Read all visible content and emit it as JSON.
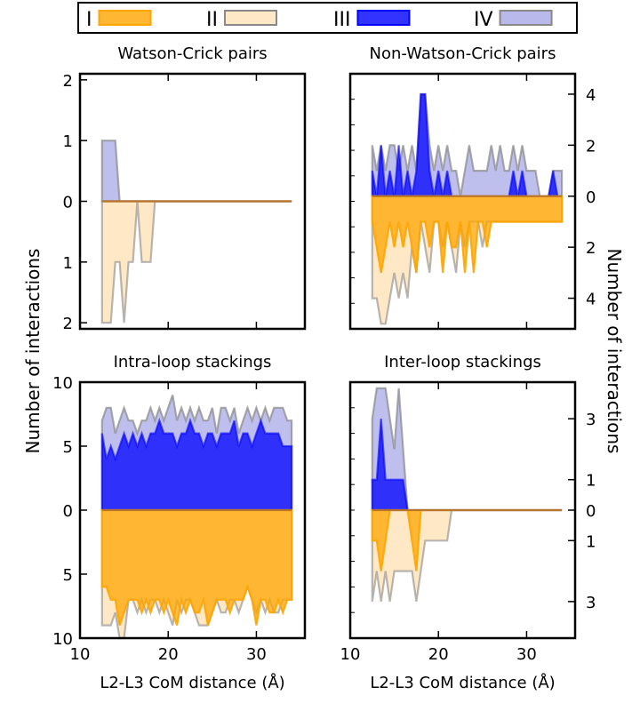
{
  "figure": {
    "ylabel_left": "Number of interactions",
    "ylabel_right": "Number of interactions",
    "colors": {
      "I": "#ffa500",
      "II": "#ffd9a0",
      "III": "#0000ff",
      "IV": "#8a8ae0"
    }
  },
  "legend": {
    "position": "top",
    "entries": [
      {
        "label": "I",
        "color": "#ffa500"
      },
      {
        "label": "II",
        "color": "#ffd9a0"
      },
      {
        "label": "III",
        "color": "#0000ff"
      },
      {
        "label": "IV",
        "color": "#8a8ae0"
      }
    ]
  },
  "chart_data": [
    {
      "id": "wc",
      "type": "area",
      "title": "Watson-Crick pairs",
      "xlabel": "",
      "xlim": [
        10,
        35.5
      ],
      "ylim": [
        -2.1,
        2.1
      ],
      "xticks": [
        10,
        20,
        30
      ],
      "xtick_labels": [
        "",
        "",
        ""
      ],
      "yticks": [
        2,
        1,
        0,
        -1,
        -2
      ],
      "ytick_labels": [
        "2",
        "1",
        "0",
        "1",
        "2"
      ],
      "ytick_side": "left",
      "x": [
        12.5,
        13,
        13.5,
        14,
        14.5,
        15,
        15.5,
        16,
        16.5,
        17,
        17.5,
        18,
        18.5,
        19,
        19.5,
        20,
        20.5,
        21,
        21.5,
        22,
        22.5,
        23,
        23.5,
        24,
        24.5,
        25,
        25.5,
        26,
        26.5,
        27,
        27.5,
        28,
        28.5,
        29,
        29.5,
        30,
        30.5,
        31,
        31.5,
        32,
        32.5,
        33,
        33.5,
        34
      ],
      "series": [
        {
          "name": "IV",
          "sign": 1,
          "values": [
            1,
            1,
            1,
            1,
            0,
            0,
            0,
            0,
            0,
            0,
            0,
            0,
            0,
            0,
            0,
            0,
            0,
            0,
            0,
            0,
            0,
            0,
            0,
            0,
            0,
            0,
            0,
            0,
            0,
            0,
            0,
            0,
            0,
            0,
            0,
            0,
            0,
            0,
            0,
            0,
            0,
            0,
            0,
            0
          ]
        },
        {
          "name": "III",
          "sign": 1,
          "values": [
            0,
            0,
            0,
            0,
            0,
            0,
            0,
            0,
            0,
            0,
            0,
            0,
            0,
            0,
            0,
            0,
            0,
            0,
            0,
            0,
            0,
            0,
            0,
            0,
            0,
            0,
            0,
            0,
            0,
            0,
            0,
            0,
            0,
            0,
            0,
            0,
            0,
            0,
            0,
            0,
            0,
            0,
            0,
            0
          ]
        },
        {
          "name": "II",
          "sign": -1,
          "values": [
            2,
            2,
            2,
            1,
            1,
            2,
            1,
            1,
            0,
            1,
            1,
            1,
            0,
            0,
            0,
            0,
            0,
            0,
            0,
            0,
            0,
            0,
            0,
            0,
            0,
            0,
            0,
            0,
            0,
            0,
            0,
            0,
            0,
            0,
            0,
            0,
            0,
            0,
            0,
            0,
            0,
            0,
            0,
            0
          ]
        },
        {
          "name": "I",
          "sign": -1,
          "values": [
            0,
            0,
            0,
            0,
            0,
            0,
            0,
            0,
            0,
            0,
            0,
            0,
            0,
            0,
            0,
            0,
            0,
            0,
            0,
            0,
            0,
            0,
            0,
            0,
            0,
            0,
            0,
            0,
            0,
            0,
            0,
            0,
            0,
            0,
            0,
            0,
            0,
            0,
            0,
            0,
            0,
            0,
            0,
            0
          ]
        }
      ]
    },
    {
      "id": "nwc",
      "type": "area",
      "title": "Non-Watson-Crick pairs",
      "xlabel": "",
      "xlim": [
        10,
        35.5
      ],
      "ylim": [
        -5.2,
        4.8
      ],
      "xticks": [
        10,
        20,
        30
      ],
      "xtick_labels": [
        "",
        "",
        ""
      ],
      "yticks": [
        4,
        2,
        0,
        -2,
        -4
      ],
      "ytick_labels": [
        "4",
        "2",
        "0",
        "2",
        "4"
      ],
      "ytick_side": "right",
      "x": [
        12.5,
        13,
        13.5,
        14,
        14.5,
        15,
        15.5,
        16,
        16.5,
        17,
        17.5,
        18,
        18.5,
        19,
        19.5,
        20,
        20.5,
        21,
        21.5,
        22,
        22.5,
        23,
        23.5,
        24,
        24.5,
        25,
        25.5,
        26,
        26.5,
        27,
        27.5,
        28,
        28.5,
        29,
        29.5,
        30,
        30.5,
        31,
        31.5,
        32,
        32.5,
        33,
        33.5,
        34
      ],
      "series": [
        {
          "name": "IV",
          "sign": 1,
          "values": [
            2,
            1,
            2,
            1,
            2,
            2,
            1,
            2,
            1,
            2,
            1,
            4,
            4,
            2,
            1,
            2,
            1,
            2,
            1,
            1,
            0,
            1,
            2,
            1,
            1,
            1,
            1,
            2,
            1,
            2,
            1,
            1,
            2,
            1,
            2,
            1,
            1,
            1,
            0,
            0,
            0,
            1,
            1,
            1
          ]
        },
        {
          "name": "III",
          "sign": 1,
          "values": [
            1,
            0,
            2,
            0,
            1,
            0,
            2,
            0,
            1,
            0,
            1,
            4,
            4,
            1,
            0,
            1,
            0,
            1,
            0,
            0,
            0,
            0,
            0,
            0,
            0,
            0,
            0,
            0,
            0,
            0,
            0,
            0,
            1,
            0,
            1,
            0,
            0,
            0,
            0,
            0,
            0,
            1,
            0,
            0
          ]
        },
        {
          "name": "II",
          "sign": -1,
          "values": [
            4,
            4,
            5,
            5,
            4,
            3,
            4,
            3,
            4,
            2,
            3,
            1,
            2,
            3,
            1,
            1,
            2,
            1,
            2,
            3,
            1,
            2,
            1,
            1,
            1,
            2,
            1,
            1,
            1,
            1,
            1,
            1,
            1,
            1,
            1,
            1,
            1,
            1,
            1,
            1,
            1,
            1,
            1,
            1
          ]
        },
        {
          "name": "I",
          "sign": -1,
          "values": [
            1,
            2,
            3,
            2,
            1,
            2,
            1,
            2,
            1,
            2,
            3,
            1,
            1,
            2,
            1,
            1,
            3,
            1,
            2,
            2,
            1,
            3,
            1,
            3,
            1,
            1,
            2,
            1,
            1,
            1,
            1,
            1,
            1,
            1,
            1,
            1,
            1,
            1,
            1,
            1,
            1,
            1,
            1,
            1
          ]
        }
      ]
    },
    {
      "id": "intra",
      "type": "area",
      "title": "Intra-loop stackings",
      "xlabel": "L2-L3 CoM distance (Å)",
      "xlim": [
        10,
        35.5
      ],
      "ylim": [
        -10,
        10
      ],
      "xticks": [
        10,
        20,
        30
      ],
      "xtick_labels": [
        "10",
        "20",
        "30"
      ],
      "yticks": [
        10,
        5,
        0,
        -5,
        -10
      ],
      "ytick_labels": [
        "10",
        "5",
        "0",
        "5",
        "10"
      ],
      "ytick_side": "left",
      "x": [
        12.5,
        13,
        13.5,
        14,
        14.5,
        15,
        15.5,
        16,
        16.5,
        17,
        17.5,
        18,
        18.5,
        19,
        19.5,
        20,
        20.5,
        21,
        21.5,
        22,
        22.5,
        23,
        23.5,
        24,
        24.5,
        25,
        25.5,
        26,
        26.5,
        27,
        27.5,
        28,
        28.5,
        29,
        29.5,
        30,
        30.5,
        31,
        31.5,
        32,
        32.5,
        33,
        33.5,
        34
      ],
      "series": [
        {
          "name": "IV",
          "sign": 1,
          "values": [
            7,
            8,
            8,
            6,
            7,
            8,
            7,
            7,
            6,
            7,
            7,
            8,
            7,
            8,
            7,
            8,
            9,
            7,
            8,
            7,
            8,
            7,
            8,
            7,
            7,
            8,
            6,
            8,
            8,
            7,
            8,
            6,
            7,
            8,
            7,
            8,
            7,
            8,
            7,
            8,
            8,
            8,
            7,
            7
          ]
        },
        {
          "name": "III",
          "sign": 1,
          "values": [
            6,
            4,
            5,
            4,
            5,
            6,
            5,
            6,
            5,
            6,
            5,
            6,
            6,
            7,
            6,
            6,
            6,
            5,
            6,
            6,
            7,
            6,
            6,
            5,
            6,
            6,
            5,
            6,
            6,
            6,
            7,
            5,
            6,
            6,
            5,
            6,
            7,
            6,
            6,
            6,
            6,
            5,
            5,
            5
          ]
        },
        {
          "name": "II",
          "sign": -1,
          "values": [
            9,
            9,
            9,
            8,
            10,
            10,
            7,
            7,
            8,
            7,
            8,
            7,
            7,
            8,
            7,
            8,
            9,
            7,
            8,
            7,
            7,
            8,
            9,
            9,
            9,
            8,
            7,
            8,
            8,
            7,
            7,
            8,
            7,
            6,
            7,
            8,
            7,
            8,
            7,
            8,
            8,
            7,
            7,
            7
          ]
        },
        {
          "name": "I",
          "sign": -1,
          "values": [
            6,
            6,
            7,
            7,
            9,
            8,
            7,
            7,
            7,
            8,
            7,
            8,
            7,
            7,
            8,
            7,
            8,
            9,
            7,
            8,
            7,
            8,
            8,
            7,
            9,
            8,
            7,
            7,
            7,
            8,
            7,
            7,
            7,
            6,
            7,
            9,
            7,
            7,
            8,
            8,
            7,
            8,
            7,
            7
          ]
        }
      ]
    },
    {
      "id": "inter",
      "type": "area",
      "title": "Inter-loop stackings",
      "xlabel": "L2-L3 CoM distance (Å)",
      "xlim": [
        10,
        35.5
      ],
      "ylim": [
        -4.2,
        4.2
      ],
      "xticks": [
        10,
        20,
        30
      ],
      "xtick_labels": [
        "10",
        "20",
        "30"
      ],
      "yticks": [
        3,
        1,
        0,
        -1,
        -3
      ],
      "ytick_labels": [
        "3",
        "1",
        "0",
        "1",
        "3"
      ],
      "ytick_side": "right",
      "x": [
        12.5,
        13,
        13.5,
        14,
        14.5,
        15,
        15.5,
        16,
        16.5,
        17,
        17.5,
        18,
        18.5,
        19,
        19.5,
        20,
        20.5,
        21,
        21.5,
        22,
        22.5,
        23,
        23.5,
        24,
        24.5,
        25,
        25.5,
        26,
        26.5,
        27,
        27.5,
        28,
        28.5,
        29,
        29.5,
        30,
        30.5,
        31,
        31.5,
        32,
        32.5,
        33,
        33.5,
        34
      ],
      "series": [
        {
          "name": "IV",
          "sign": 1,
          "values": [
            3,
            4,
            4,
            4,
            3,
            2,
            4,
            2,
            0,
            0,
            0,
            0,
            0,
            0,
            0,
            0,
            0,
            0,
            0,
            0,
            0,
            0,
            0,
            0,
            0,
            0,
            0,
            0,
            0,
            0,
            0,
            0,
            0,
            0,
            0,
            0,
            0,
            0,
            0,
            0,
            0,
            0,
            0,
            0
          ]
        },
        {
          "name": "III",
          "sign": 1,
          "values": [
            1,
            1,
            3,
            1,
            1,
            1,
            1,
            1,
            0,
            0,
            0,
            0,
            0,
            0,
            0,
            0,
            0,
            0,
            0,
            0,
            0,
            0,
            0,
            0,
            0,
            0,
            0,
            0,
            0,
            0,
            0,
            0,
            0,
            0,
            0,
            0,
            0,
            0,
            0,
            0,
            0,
            0,
            0,
            0
          ]
        },
        {
          "name": "II",
          "sign": -1,
          "values": [
            3,
            2,
            3,
            2,
            3,
            2,
            2,
            2,
            2,
            2,
            3,
            2,
            1,
            1,
            1,
            1,
            1,
            1,
            0,
            0,
            0,
            0,
            0,
            0,
            0,
            0,
            0,
            0,
            0,
            0,
            0,
            0,
            0,
            0,
            0,
            0,
            0,
            0,
            0,
            0,
            0,
            0,
            0,
            0
          ]
        },
        {
          "name": "I",
          "sign": -1,
          "values": [
            1,
            1,
            2,
            1,
            0,
            0,
            0,
            0,
            0,
            1,
            2,
            0,
            0,
            0,
            0,
            0,
            0,
            0,
            0,
            0,
            0,
            0,
            0,
            0,
            0,
            0,
            0,
            0,
            0,
            0,
            0,
            0,
            0,
            0,
            0,
            0,
            0,
            0,
            0,
            0,
            0,
            0,
            0,
            0
          ]
        }
      ]
    }
  ]
}
